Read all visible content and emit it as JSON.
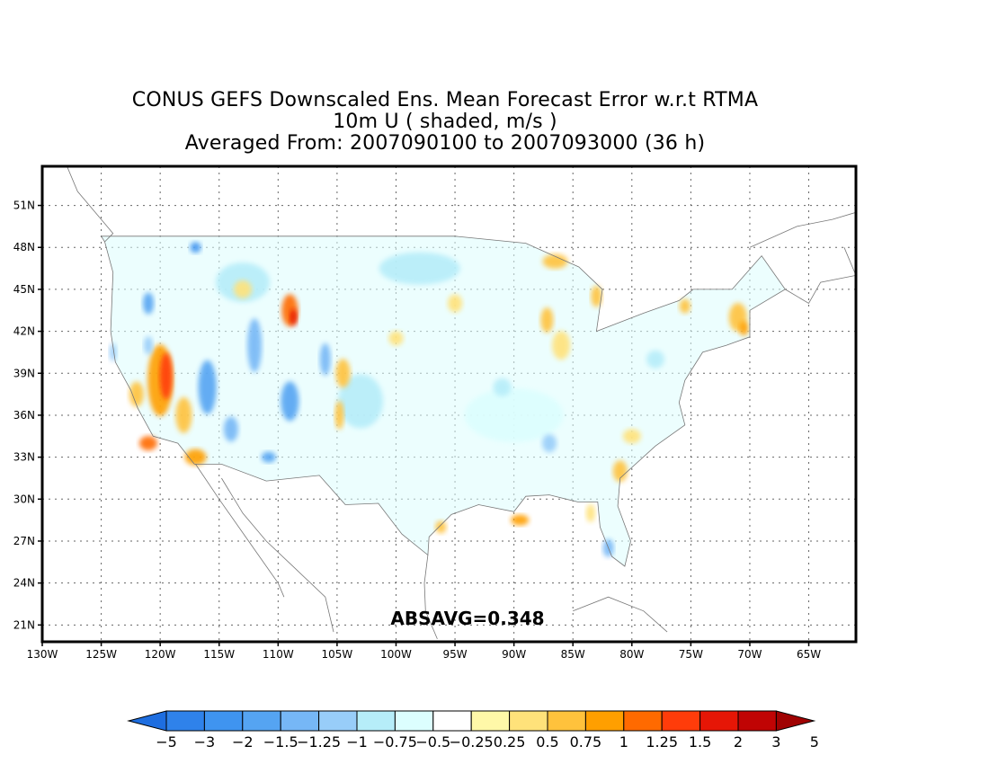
{
  "title": {
    "line1": "CONUS GEFS Downscaled Ens. Mean Forecast Error w.r.t RTMA",
    "line2": "10m U ( shaded, m/s )",
    "line3": "Averaged From: 2007090100 to 2007093000 (36 h)"
  },
  "annotation": "ABSAVG=0.348",
  "map": {
    "lon_range": [
      -130,
      -61
    ],
    "lat_range": [
      19.8,
      53.8
    ],
    "lon_ticks": [
      "130W",
      "125W",
      "120W",
      "115W",
      "110W",
      "105W",
      "100W",
      "95W",
      "90W",
      "85W",
      "80W",
      "75W",
      "70W",
      "65W"
    ],
    "lon_values": [
      -130,
      -125,
      -120,
      -115,
      -110,
      -105,
      -100,
      -95,
      -90,
      -85,
      -80,
      -75,
      -70,
      -65
    ],
    "lat_ticks": [
      "21N",
      "24N",
      "27N",
      "30N",
      "33N",
      "36N",
      "39N",
      "42N",
      "45N",
      "48N",
      "51N"
    ],
    "lat_values": [
      21,
      24,
      27,
      30,
      33,
      36,
      39,
      42,
      45,
      48,
      51
    ],
    "grid": "dotted"
  },
  "colorbar": {
    "labels": [
      "-5",
      "-3",
      "-2",
      "-1.5",
      "-1.25",
      "-1",
      "-0.75",
      "-0.5",
      "-0.25",
      "0.25",
      "0.5",
      "0.75",
      "1",
      "1.25",
      "1.5",
      "2",
      "3",
      "5"
    ],
    "colors": [
      "#1e6ee0",
      "#2f82ea",
      "#3f94f0",
      "#55a4f2",
      "#76b7f6",
      "#98cdf9",
      "#b6edf9",
      "#dcfefe",
      "#ffffff",
      "#fff8a8",
      "#ffe27a",
      "#ffc23c",
      "#ff9f00",
      "#ff6a00",
      "#ff3c0a",
      "#e61606",
      "#c00404",
      "#a00202"
    ]
  }
}
